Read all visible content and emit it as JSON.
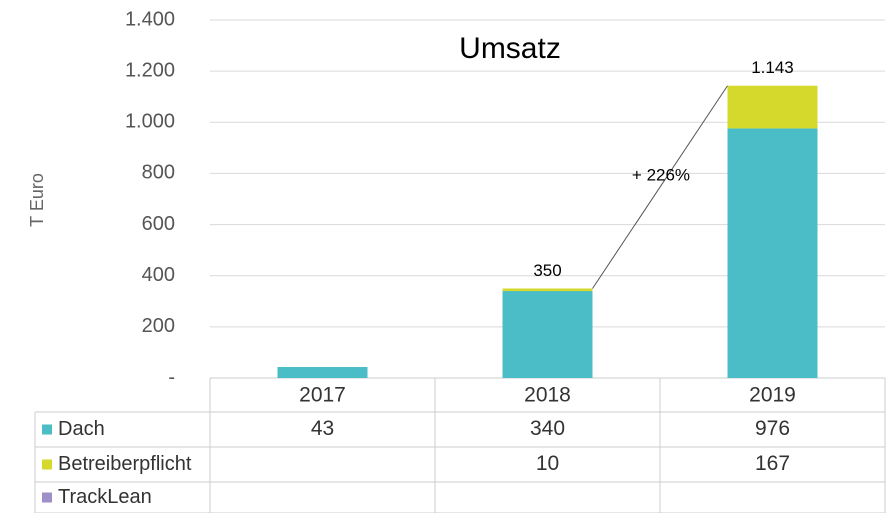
{
  "chart_data": {
    "type": "bar",
    "stacked": true,
    "title": "Umsatz",
    "ylabel": "T Euro",
    "categories": [
      "2017",
      "2018",
      "2019"
    ],
    "series": [
      {
        "name": "Dach",
        "color": "#4bbdc6",
        "values": [
          43,
          340,
          976
        ]
      },
      {
        "name": "Betreiberpflicht",
        "color": "#d4d92b",
        "values": [
          null,
          10,
          167
        ]
      },
      {
        "name": "TrackLean",
        "color": "#9f8fc8",
        "values": [
          null,
          null,
          null
        ]
      }
    ],
    "totals": [
      null,
      350,
      1143
    ],
    "total_labels": [
      null,
      "350",
      "1.143"
    ],
    "annotation": "+ 226%",
    "ylim": [
      0,
      1400
    ],
    "yticks": [
      {
        "value": 0,
        "label": "-"
      },
      200,
      400,
      600,
      800,
      {
        "value": 1000,
        "label": "1.000"
      },
      {
        "value": 1200,
        "label": "1.200"
      },
      {
        "value": 1400,
        "label": "1.400"
      }
    ],
    "grid": true
  }
}
